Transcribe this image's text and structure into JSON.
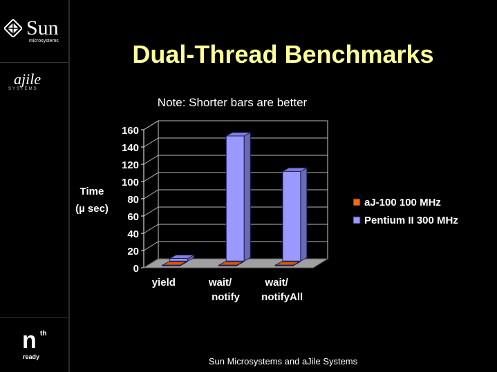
{
  "slide": {
    "title": "Dual-Thread Benchmarks",
    "footer": "Sun Microsystems and aJile Systems"
  },
  "logos": {
    "sun_word": "Sun",
    "sun_sub": "microsystems",
    "ajile_word": "ajile",
    "ajile_sub": "SYSTEMS",
    "nth_n": "n",
    "nth_th": "th",
    "nth_ready": "ready"
  },
  "colors": {
    "background": "#000000",
    "title": "#ffff99",
    "series_1": "#ff6a00",
    "series_2": "#9999ff",
    "floor": "#a0a0a0"
  },
  "chart_data": {
    "type": "bar",
    "title": "Note: Shorter bars are better",
    "ylabel_line1": "Time",
    "ylabel_line2": "(µ sec)",
    "categories": [
      [
        "yield"
      ],
      [
        "wait/",
        "notify"
      ],
      [
        "wait/",
        "notifyAll"
      ]
    ],
    "series": [
      {
        "name": "aJ-100 100 MHz",
        "values": [
          0.5,
          0.5,
          0.5
        ]
      },
      {
        "name": "Pentium II 300 MHz",
        "values": [
          3,
          145,
          104
        ]
      }
    ],
    "ylim": [
      0,
      160
    ],
    "yticks": [
      0,
      20,
      40,
      60,
      80,
      100,
      120,
      140,
      160
    ],
    "grid": true,
    "legend_position": "right"
  }
}
